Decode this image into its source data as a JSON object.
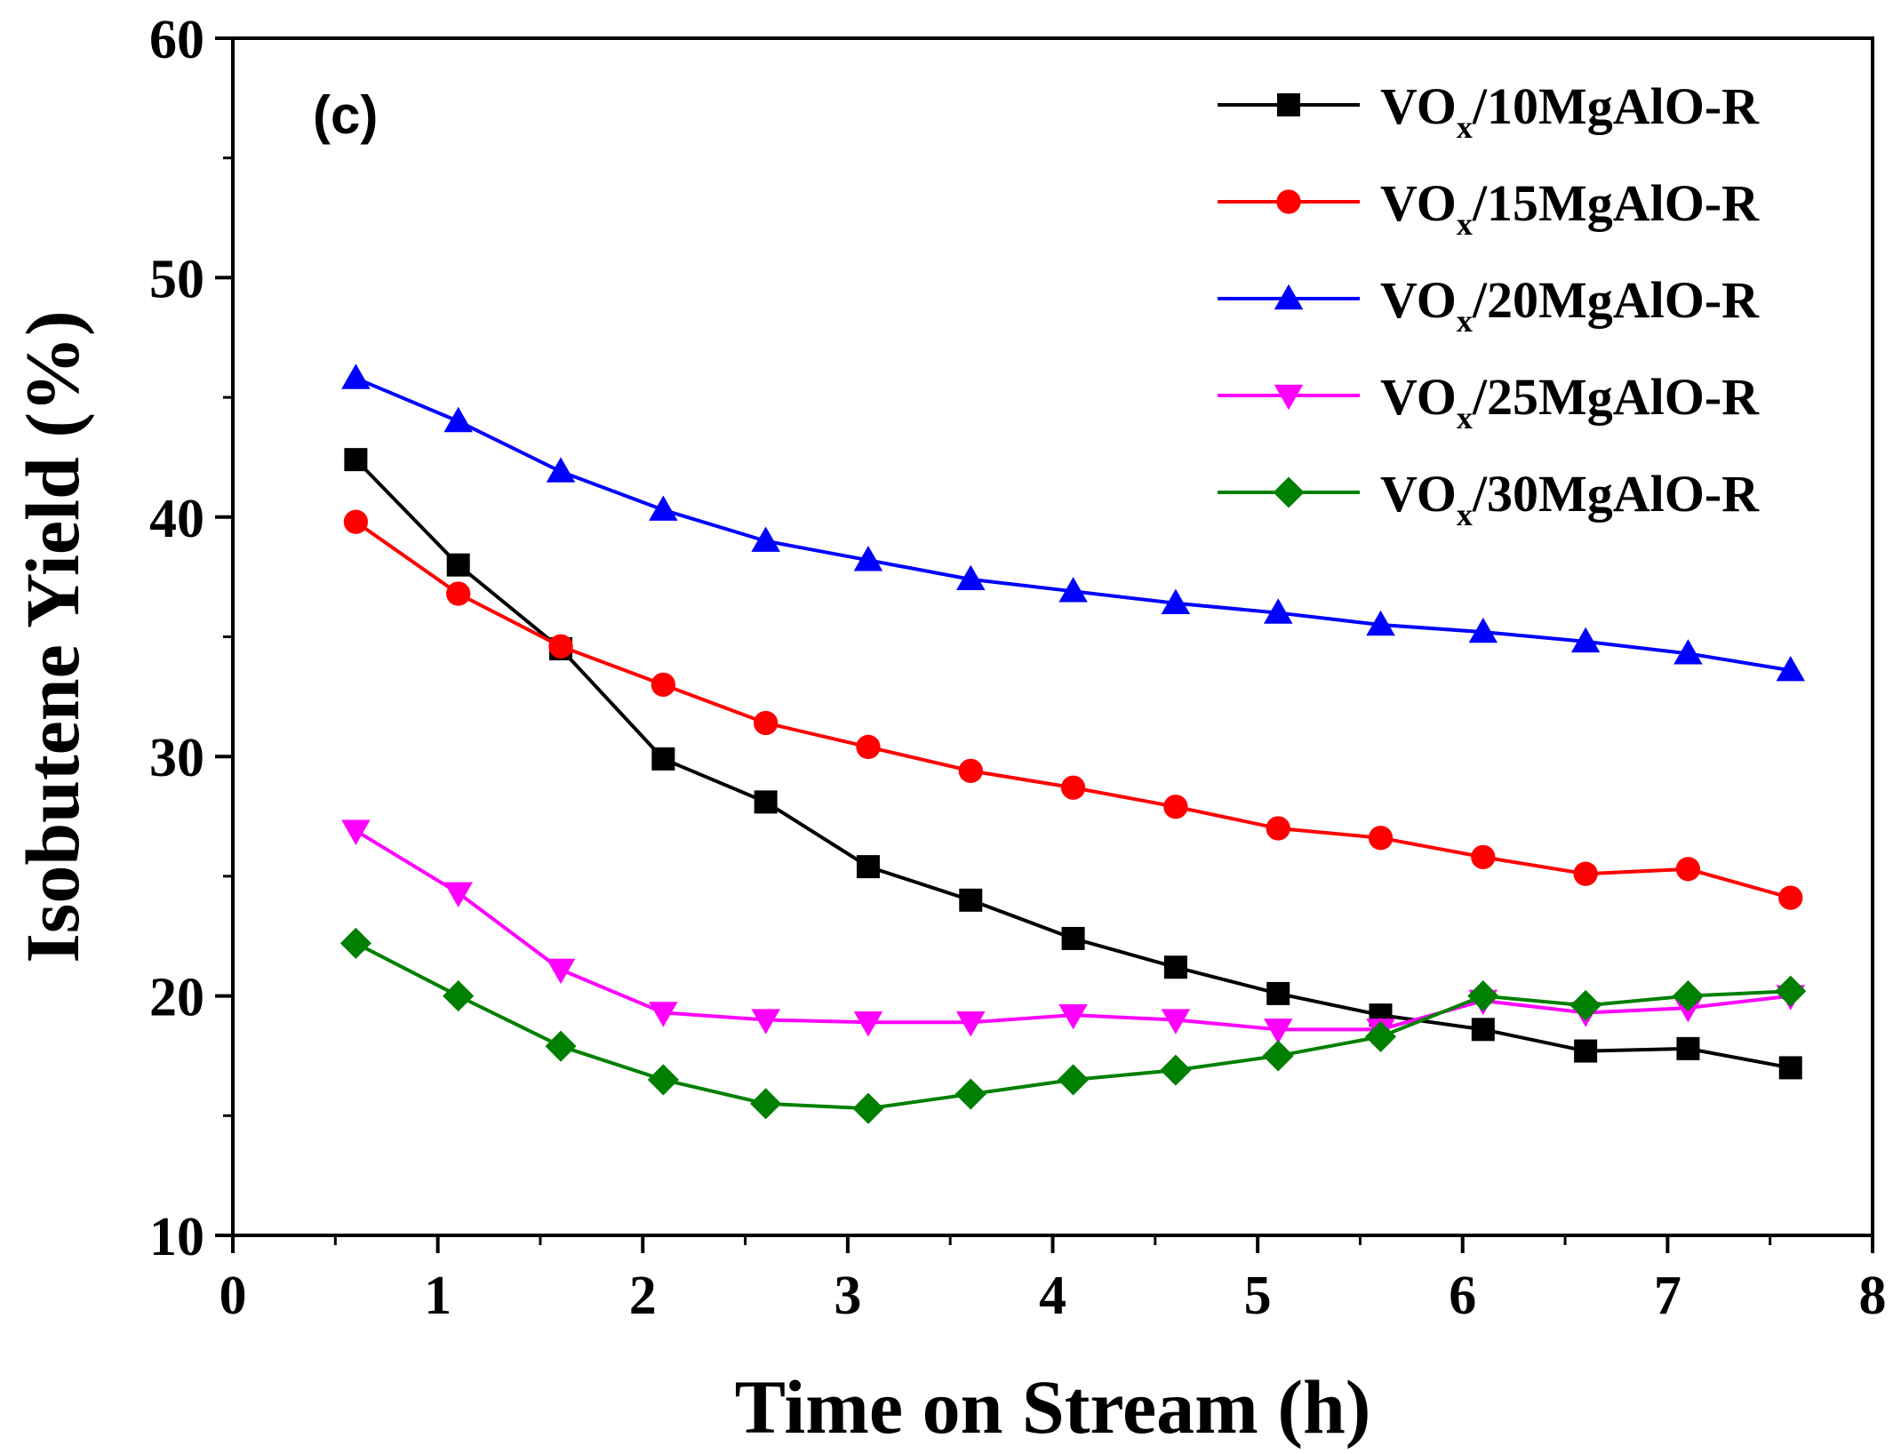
{
  "chart_data": {
    "type": "line",
    "panel_label": "(c)",
    "xlabel": "Time on Stream (h)",
    "ylabel": "Isobutene Yield (%)",
    "xlim": [
      0,
      8
    ],
    "ylim": [
      10,
      60
    ],
    "xticks": [
      0,
      1,
      2,
      3,
      4,
      5,
      6,
      7,
      8
    ],
    "yticks": [
      10,
      20,
      30,
      40,
      50,
      60
    ],
    "grid": false,
    "legend_position": "top-right",
    "x": [
      0.6,
      1.1,
      1.6,
      2.1,
      2.6,
      3.1,
      3.6,
      4.1,
      4.6,
      5.1,
      5.6,
      6.1,
      6.6,
      7.1,
      7.6
    ],
    "series": [
      {
        "name": "VOx/10MgAlO-R",
        "label_prefix": "VO",
        "label_sub": "x",
        "label_suffix": "/10MgAlO-R",
        "color": "#000000",
        "marker": "square",
        "values": [
          42.4,
          38.0,
          34.5,
          29.9,
          28.1,
          25.4,
          24.0,
          22.4,
          21.2,
          20.1,
          19.2,
          18.6,
          17.7,
          17.8,
          17.0
        ]
      },
      {
        "name": "VOx/15MgAlO-R",
        "label_prefix": "VO",
        "label_sub": "x",
        "label_suffix": "/15MgAlO-R",
        "color": "#ff0000",
        "marker": "circle",
        "values": [
          39.8,
          36.8,
          34.6,
          33.0,
          31.4,
          30.4,
          29.4,
          28.7,
          27.9,
          27.0,
          26.6,
          25.8,
          25.1,
          25.3,
          24.1
        ]
      },
      {
        "name": "VOx/20MgAlO-R",
        "label_prefix": "VO",
        "label_sub": "x",
        "label_suffix": "/20MgAlO-R",
        "color": "#0000ff",
        "marker": "triangle-up",
        "values": [
          45.8,
          44.0,
          41.9,
          40.3,
          39.0,
          38.2,
          37.4,
          36.9,
          36.4,
          36.0,
          35.5,
          35.2,
          34.8,
          34.3,
          33.6
        ]
      },
      {
        "name": "VOx/25MgAlO-R",
        "label_prefix": "VO",
        "label_sub": "x",
        "label_suffix": "/25MgAlO-R",
        "color": "#ff00ff",
        "marker": "triangle-down",
        "values": [
          26.9,
          24.3,
          21.1,
          19.3,
          19.0,
          18.9,
          18.9,
          19.2,
          19.0,
          18.6,
          18.6,
          19.8,
          19.3,
          19.5,
          20.0
        ]
      },
      {
        "name": "VOx/30MgAlO-R",
        "label_prefix": "VO",
        "label_sub": "x",
        "label_suffix": "/30MgAlO-R",
        "color": "#008000",
        "marker": "diamond",
        "values": [
          22.2,
          20.0,
          17.9,
          16.5,
          15.5,
          15.3,
          15.9,
          16.5,
          16.9,
          17.5,
          18.3,
          20.0,
          19.6,
          20.0,
          20.2
        ]
      }
    ]
  }
}
